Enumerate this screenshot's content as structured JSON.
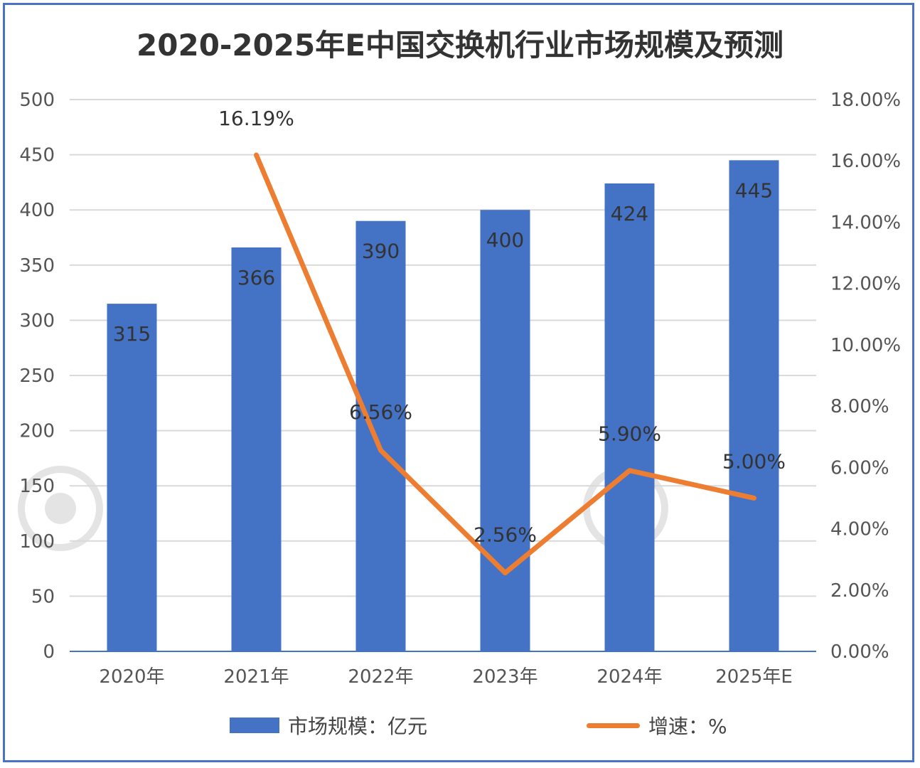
{
  "chart_data": {
    "type": "bar",
    "title": "2020-2025年E中国交换机行业市场规模及预测",
    "categories": [
      "2020年",
      "2021年",
      "2022年",
      "2023年",
      "2024年",
      "2025年E"
    ],
    "series": [
      {
        "name": "市场规模：亿元",
        "type": "bar",
        "axis": "left",
        "values": [
          315,
          366,
          390,
          400,
          424,
          445
        ],
        "labels": [
          "315",
          "366",
          "390",
          "400",
          "424",
          "445"
        ],
        "color": "#4472c4"
      },
      {
        "name": "增速：%",
        "type": "line",
        "axis": "right",
        "values": [
          null,
          16.19,
          6.56,
          2.56,
          5.9,
          5.0
        ],
        "labels": [
          "",
          "16.19%",
          "6.56%",
          "2.56%",
          "5.90%",
          "5.00%"
        ],
        "color": "#ed7d31"
      }
    ],
    "ylim_left": [
      0,
      500
    ],
    "yticks_left": [
      "0",
      "50",
      "100",
      "150",
      "200",
      "250",
      "300",
      "350",
      "400",
      "450",
      "500"
    ],
    "ylim_right": [
      0,
      18
    ],
    "yticks_right": [
      "0.00%",
      "2.00%",
      "4.00%",
      "6.00%",
      "8.00%",
      "10.00%",
      "12.00%",
      "14.00%",
      "16.00%",
      "18.00%"
    ],
    "grid": true,
    "legend_position": "bottom"
  }
}
